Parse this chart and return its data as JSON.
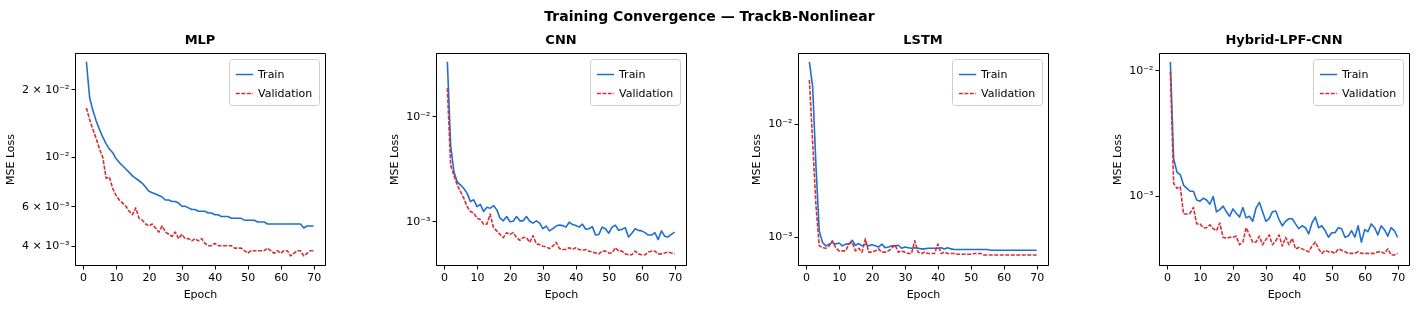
{
  "chart_data": [
    {
      "type": "other",
      "title": "Training Convergence — TrackB-Nonlinear"
    },
    {
      "type": "line",
      "title": "MLP",
      "xlabel": "Epoch",
      "ylabel": "MSE Loss",
      "log": true,
      "legend": "top right",
      "grid": false,
      "x": [
        1,
        2,
        3,
        4,
        5,
        6,
        7,
        8,
        9,
        10,
        11,
        12,
        13,
        14,
        15,
        16,
        17,
        18,
        19,
        20,
        21,
        22,
        23,
        24,
        25,
        26,
        27,
        28,
        29,
        30,
        31,
        32,
        33,
        34,
        35,
        36,
        37,
        38,
        39,
        40,
        41,
        42,
        43,
        44,
        45,
        46,
        47,
        48,
        49,
        50,
        51,
        52,
        53,
        54,
        55,
        56,
        57,
        58,
        59,
        60,
        61,
        62,
        63,
        64,
        65,
        66,
        67,
        68,
        69,
        70
      ],
      "xlim": [
        -2.45,
        73.45
      ],
      "xticks": [
        0,
        10,
        20,
        30,
        40,
        50,
        60,
        70
      ],
      "ylim": [
        0.00328,
        0.029
      ],
      "yticks": [
        {
          "value": 0.004,
          "label": "4 × 10⁻³"
        },
        {
          "value": 0.006,
          "label": "6 × 10⁻³"
        },
        {
          "value": 0.01,
          "label": "10⁻²"
        },
        {
          "value": 0.02,
          "label": "2 × 10⁻²"
        }
      ],
      "series": [
        {
          "name": "Train",
          "color": "#1f6fcf",
          "line_style": "solid",
          "values": [
            0.0265,
            0.0183,
            0.016,
            0.0144,
            0.0132,
            0.0122,
            0.0114,
            0.0108,
            0.0104,
            0.0098,
            0.0094,
            0.0091,
            0.0088,
            0.0085,
            0.0082,
            0.008,
            0.0078,
            0.0076,
            0.0073,
            0.007,
            0.0069,
            0.0068,
            0.0067,
            0.0066,
            0.0064,
            0.0064,
            0.0063,
            0.0063,
            0.0062,
            0.006,
            0.006,
            0.0059,
            0.0058,
            0.0058,
            0.0057,
            0.0057,
            0.0057,
            0.0056,
            0.0056,
            0.0055,
            0.0055,
            0.0054,
            0.0054,
            0.0054,
            0.0053,
            0.0053,
            0.0053,
            0.0053,
            0.0052,
            0.0052,
            0.0052,
            0.0052,
            0.0051,
            0.0051,
            0.0051,
            0.005,
            0.005,
            0.005,
            0.005,
            0.005,
            0.005,
            0.005,
            0.005,
            0.005,
            0.005,
            0.005,
            0.0048,
            0.0049,
            0.0049,
            0.0049
          ]
        },
        {
          "name": "Validation",
          "color": "#d62f35",
          "line_style": "dashed",
          "values": [
            0.0165,
            0.0146,
            0.0132,
            0.012,
            0.0108,
            0.0099,
            0.008,
            0.0081,
            0.0072,
            0.0067,
            0.0064,
            0.0062,
            0.006,
            0.0057,
            0.0055,
            0.0059,
            0.0053,
            0.0052,
            0.005,
            0.0049,
            0.005,
            0.0048,
            0.0046,
            0.0049,
            0.0046,
            0.0045,
            0.0044,
            0.0046,
            0.0043,
            0.0045,
            0.0043,
            0.0043,
            0.0042,
            0.0043,
            0.0042,
            0.0043,
            0.0041,
            0.004,
            0.004,
            0.0041,
            0.004,
            0.004,
            0.004,
            0.004,
            0.004,
            0.0039,
            0.0039,
            0.0039,
            0.0038,
            0.0037,
            0.0038,
            0.0038,
            0.0038,
            0.0038,
            0.0038,
            0.0039,
            0.0038,
            0.0037,
            0.0038,
            0.0037,
            0.0038,
            0.0038,
            0.0036,
            0.0037,
            0.0038,
            0.0038,
            0.0036,
            0.0037,
            0.0038,
            0.0038
          ]
        }
      ]
    },
    {
      "type": "line",
      "title": "CNN",
      "xlabel": "Epoch",
      "ylabel": "MSE Loss",
      "log": true,
      "legend": "top right",
      "grid": false,
      "x": [
        1,
        2,
        3,
        4,
        5,
        6,
        7,
        8,
        9,
        10,
        11,
        12,
        13,
        14,
        15,
        16,
        17,
        18,
        19,
        20,
        21,
        22,
        23,
        24,
        25,
        26,
        27,
        28,
        29,
        30,
        31,
        32,
        33,
        34,
        35,
        36,
        37,
        38,
        39,
        40,
        41,
        42,
        43,
        44,
        45,
        46,
        47,
        48,
        49,
        50,
        51,
        52,
        53,
        54,
        55,
        56,
        57,
        58,
        59,
        60,
        61,
        62,
        63,
        64,
        65,
        66,
        67,
        68,
        69,
        70
      ],
      "xlim": [
        -2.45,
        73.45
      ],
      "xticks": [
        0,
        10,
        20,
        30,
        40,
        50,
        60,
        70
      ],
      "ylim": [
        0.000384,
        0.0398
      ],
      "yticks": [
        {
          "value": 0.001,
          "label": "10⁻³"
        },
        {
          "value": 0.01,
          "label": "10⁻²"
        }
      ],
      "series": [
        {
          "name": "Train",
          "color": "#1f6fcf",
          "line_style": "solid",
          "values": [
            0.0328,
            0.00524,
            0.00294,
            0.00237,
            0.00221,
            0.00205,
            0.00184,
            0.00154,
            0.0016,
            0.00138,
            0.00145,
            0.00124,
            0.00136,
            0.00133,
            0.00141,
            0.00129,
            0.00107,
            0.00101,
            0.00111,
            0.00099,
            0.001,
            0.00111,
            0.00101,
            0.00101,
            0.00111,
            0.001,
            0.00096,
            0.00101,
            0.00096,
            0.00085,
            0.0009,
            0.00081,
            0.00085,
            0.0009,
            0.00092,
            0.00091,
            0.00088,
            0.00098,
            0.00093,
            0.00091,
            0.00088,
            0.00094,
            0.00084,
            0.00085,
            0.00089,
            0.00074,
            0.00075,
            0.00088,
            0.00085,
            0.00077,
            0.00088,
            0.00092,
            0.00082,
            0.00084,
            0.00087,
            0.00071,
            0.00077,
            0.00085,
            0.00082,
            0.00081,
            0.00078,
            0.00074,
            0.00074,
            0.00078,
            0.00067,
            0.00081,
            0.00072,
            0.00071,
            0.00075,
            0.00079
          ]
        },
        {
          "name": "Validation",
          "color": "#d62f35",
          "line_style": "dashed",
          "values": [
            0.0184,
            0.0034,
            0.00274,
            0.00221,
            0.00191,
            0.00165,
            0.00138,
            0.00124,
            0.0012,
            0.00107,
            0.00104,
            0.00094,
            0.00094,
            0.00117,
            0.00087,
            0.00081,
            0.00075,
            0.0007,
            0.00078,
            0.00075,
            0.00078,
            0.0007,
            0.00066,
            0.0007,
            0.0007,
            0.00063,
            0.00073,
            0.00061,
            0.0006,
            0.00058,
            0.00057,
            0.00055,
            0.00058,
            0.00063,
            0.00055,
            0.00054,
            0.00054,
            0.00056,
            0.00054,
            0.00056,
            0.00054,
            0.00053,
            0.00054,
            0.00052,
            0.00051,
            0.0005,
            0.00049,
            0.00052,
            0.00052,
            0.0005,
            0.0005,
            0.00056,
            0.00052,
            0.00052,
            0.00049,
            0.00048,
            0.00048,
            0.00052,
            0.00049,
            0.00048,
            0.00048,
            0.00051,
            0.00052,
            0.00052,
            0.00049,
            0.00049,
            0.0005,
            0.00051,
            0.0005,
            0.00049
          ]
        }
      ]
    },
    {
      "type": "line",
      "title": "LSTM",
      "xlabel": "Epoch",
      "ylabel": "MSE Loss",
      "log": true,
      "legend": "top right",
      "grid": false,
      "x": [
        1,
        2,
        3,
        4,
        5,
        6,
        7,
        8,
        9,
        10,
        11,
        12,
        13,
        14,
        15,
        16,
        17,
        18,
        19,
        20,
        21,
        22,
        23,
        24,
        25,
        26,
        27,
        28,
        29,
        30,
        31,
        32,
        33,
        34,
        35,
        36,
        37,
        38,
        39,
        40,
        41,
        42,
        43,
        44,
        45,
        46,
        47,
        48,
        49,
        50,
        51,
        52,
        53,
        54,
        55,
        56,
        57,
        58,
        59,
        60,
        61,
        62,
        63,
        64,
        65,
        66,
        67,
        68,
        69,
        70
      ],
      "xlim": [
        -2.45,
        73.45
      ],
      "xticks": [
        0,
        10,
        20,
        30,
        40,
        50,
        60,
        70
      ],
      "ylim": [
        0.000562,
        0.0422
      ],
      "yticks": [
        {
          "value": 0.001,
          "label": "10⁻³"
        },
        {
          "value": 0.01,
          "label": "10⁻²"
        }
      ],
      "series": [
        {
          "name": "Train",
          "color": "#1f6fcf",
          "line_style": "solid",
          "values": [
            0.0352,
            0.0213,
            0.00427,
            0.00112,
            0.00089,
            0.00083,
            0.00086,
            0.00089,
            0.00086,
            0.00088,
            0.00083,
            0.00086,
            0.00086,
            0.00093,
            0.00084,
            0.00087,
            0.00083,
            0.00086,
            0.00083,
            0.00085,
            0.00083,
            0.00081,
            0.00086,
            0.0008,
            0.00081,
            0.00083,
            0.00083,
            0.00084,
            0.00079,
            0.00081,
            0.0008,
            0.00079,
            0.0008,
            0.00079,
            0.00078,
            0.00078,
            0.00079,
            0.00079,
            0.00079,
            0.00079,
            0.0008,
            0.00078,
            0.0008,
            0.00078,
            0.00077,
            0.00077,
            0.00077,
            0.00077,
            0.00077,
            0.00077,
            0.00077,
            0.00077,
            0.00077,
            0.00077,
            0.00077,
            0.00076,
            0.00076,
            0.00076,
            0.00076,
            0.00076,
            0.00076,
            0.00076,
            0.00076,
            0.00076,
            0.00076,
            0.00076,
            0.00076,
            0.00076,
            0.00076,
            0.00076
          ]
        },
        {
          "name": "Validation",
          "color": "#d62f35",
          "line_style": "dashed",
          "values": [
            0.0244,
            0.00683,
            0.00191,
            0.00083,
            0.0008,
            0.00079,
            0.00083,
            0.00092,
            0.0008,
            0.00075,
            0.00075,
            0.00075,
            0.00086,
            0.00089,
            0.00075,
            0.00079,
            0.00073,
            0.00096,
            0.00073,
            0.00073,
            0.00075,
            0.00078,
            0.00073,
            0.00073,
            0.00075,
            0.00079,
            0.00085,
            0.00073,
            0.00075,
            0.00073,
            0.00071,
            0.00071,
            0.00092,
            0.00073,
            0.00071,
            0.00073,
            0.00071,
            0.00071,
            0.00071,
            0.00086,
            0.00071,
            0.00073,
            0.00071,
            0.00071,
            0.00071,
            0.0007,
            0.0007,
            0.0007,
            0.0007,
            0.0007,
            0.00071,
            0.00071,
            0.00071,
            0.00069,
            0.00069,
            0.00069,
            0.00069,
            0.00069,
            0.00069,
            0.00069,
            0.00069,
            0.00069,
            0.00069,
            0.00069,
            0.00069,
            0.00069,
            0.00069,
            0.00069,
            0.00069,
            0.00069
          ]
        }
      ]
    },
    {
      "type": "line",
      "title": "Hybrid-LPF-CNN",
      "xlabel": "Epoch",
      "ylabel": "MSE Loss",
      "log": true,
      "legend": "top right",
      "grid": false,
      "x": [
        1,
        2,
        3,
        4,
        5,
        6,
        7,
        8,
        9,
        10,
        11,
        12,
        13,
        14,
        15,
        16,
        17,
        18,
        19,
        20,
        21,
        22,
        23,
        24,
        25,
        26,
        27,
        28,
        29,
        30,
        31,
        32,
        33,
        34,
        35,
        36,
        37,
        38,
        39,
        40,
        41,
        42,
        43,
        44,
        45,
        46,
        47,
        48,
        49,
        50,
        51,
        52,
        53,
        54,
        55,
        56,
        57,
        58,
        59,
        60,
        61,
        62,
        63,
        64,
        65,
        66,
        67,
        68,
        69,
        70
      ],
      "xlim": [
        -2.45,
        73.45
      ],
      "xticks": [
        0,
        10,
        20,
        30,
        40,
        50,
        60,
        70
      ],
      "ylim": [
        0.000283,
        0.01367
      ],
      "yticks": [
        {
          "value": 0.001,
          "label": "10⁻³"
        },
        {
          "value": 0.01,
          "label": "10⁻²"
        }
      ],
      "series": [
        {
          "name": "Train",
          "color": "#1f6fcf",
          "line_style": "solid",
          "values": [
            0.0116,
            0.00197,
            0.00155,
            0.00148,
            0.00122,
            0.00115,
            0.00109,
            0.00109,
            0.00093,
            0.00091,
            0.00096,
            0.00093,
            0.00086,
            0.00099,
            0.00075,
            0.00078,
            0.00083,
            0.00075,
            0.00069,
            0.00079,
            0.00073,
            0.00068,
            0.00081,
            0.00067,
            0.00069,
            0.00063,
            0.0008,
            0.00089,
            0.00075,
            0.00063,
            0.00066,
            0.00075,
            0.00076,
            0.00065,
            0.00058,
            0.00063,
            0.00066,
            0.00066,
            0.0006,
            0.00055,
            0.00058,
            0.00056,
            0.0005,
            0.00061,
            0.00068,
            0.00056,
            0.00058,
            0.00053,
            0.00047,
            0.00051,
            0.00051,
            0.00056,
            0.00055,
            0.00047,
            0.00048,
            0.00053,
            0.00047,
            0.00058,
            0.00043,
            0.00054,
            0.00052,
            0.0006,
            0.00056,
            0.00049,
            0.00058,
            0.00054,
            0.00048,
            0.00056,
            0.00053,
            0.00047
          ]
        },
        {
          "name": "Validation",
          "color": "#d62f35",
          "line_style": "dashed",
          "values": [
            0.0097,
            0.00126,
            0.00115,
            0.00118,
            0.00072,
            0.00072,
            0.00073,
            0.00081,
            0.0006,
            0.0006,
            0.00056,
            0.00056,
            0.00059,
            0.00055,
            0.00053,
            0.00061,
            0.00047,
            0.00046,
            0.00047,
            0.00047,
            0.00048,
            0.00041,
            0.00043,
            0.00056,
            0.00049,
            0.00043,
            0.00043,
            0.00048,
            0.00041,
            0.00045,
            0.00049,
            0.00041,
            0.00044,
            0.00049,
            0.0004,
            0.00047,
            0.00041,
            0.00046,
            0.00038,
            0.00039,
            0.00038,
            0.00037,
            0.00036,
            0.0004,
            0.00043,
            0.00038,
            0.00035,
            0.00037,
            0.00036,
            0.00036,
            0.00035,
            0.00038,
            0.00037,
            0.00036,
            0.00035,
            0.00035,
            0.00035,
            0.00036,
            0.00035,
            0.00035,
            0.00035,
            0.00035,
            0.00035,
            0.00036,
            0.00036,
            0.00035,
            0.00038,
            0.00034,
            0.00034,
            0.00035
          ]
        }
      ]
    }
  ]
}
